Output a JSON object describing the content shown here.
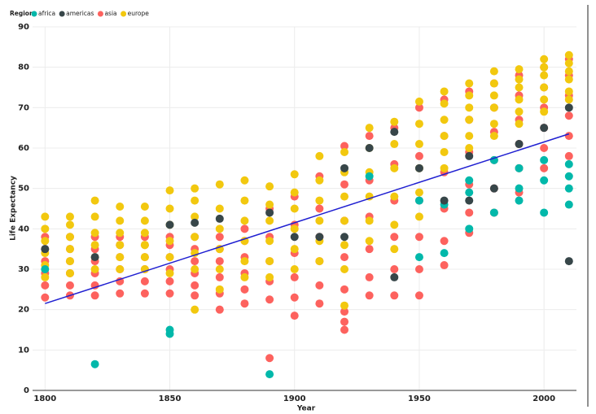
{
  "chart_data": {
    "type": "scatter",
    "legend_title": "Region",
    "x_label": "Year",
    "y_label": "Life Expectancy",
    "xlim": [
      1795,
      2013
    ],
    "ylim": [
      0,
      90
    ],
    "xticks": [
      1800,
      1850,
      1900,
      1950,
      2000
    ],
    "yticks": [
      0,
      10,
      20,
      30,
      40,
      50,
      60,
      70,
      80,
      90
    ],
    "grid": true,
    "series": [
      {
        "name": "africa",
        "color": "#01b8aa",
        "x": [
          1800,
          1820,
          1850,
          1850,
          1890,
          1930,
          1950,
          1950,
          1960,
          1960,
          1970,
          1970,
          1970,
          1980,
          1980,
          1990,
          1990,
          1990,
          2000,
          2000,
          2000,
          2010,
          2010,
          2010,
          2010
        ],
        "values": [
          30,
          6.5,
          15,
          14,
          4,
          53,
          33,
          47,
          34,
          46,
          40,
          52,
          49,
          44,
          57,
          47,
          50,
          55,
          44,
          52,
          57,
          46,
          50,
          53,
          56
        ]
      },
      {
        "name": "americas",
        "color": "#374649",
        "x": [
          1800,
          1820,
          1850,
          1860,
          1870,
          1890,
          1900,
          1910,
          1920,
          1920,
          1930,
          1940,
          1940,
          1950,
          1960,
          1970,
          1970,
          1980,
          1990,
          2000,
          2010,
          2010
        ],
        "values": [
          35,
          33,
          41,
          41.5,
          42.5,
          44,
          38,
          38,
          55,
          38,
          60,
          64,
          28,
          55,
          47,
          58,
          47,
          50,
          61,
          65,
          32,
          70
        ]
      },
      {
        "name": "asia",
        "color": "#fd625e",
        "x": [
          1800,
          1800,
          1800,
          1800,
          1800,
          1800,
          1810,
          1810,
          1810,
          1810,
          1810,
          1810,
          1820,
          1820,
          1820,
          1820,
          1820,
          1820,
          1830,
          1830,
          1830,
          1830,
          1830,
          1830,
          1840,
          1840,
          1840,
          1840,
          1840,
          1840,
          1850,
          1850,
          1850,
          1850,
          1850,
          1850,
          1860,
          1860,
          1860,
          1860,
          1860,
          1860,
          1870,
          1870,
          1870,
          1870,
          1870,
          1870,
          1880,
          1880,
          1880,
          1880,
          1880,
          1880,
          1890,
          1890,
          1890,
          1890,
          1890,
          1890,
          1900,
          1900,
          1900,
          1900,
          1900,
          1900,
          1910,
          1910,
          1910,
          1910,
          1910,
          1910,
          1920,
          1920,
          1920,
          1920,
          1920,
          1920,
          1920,
          1920,
          1930,
          1930,
          1930,
          1930,
          1930,
          1930,
          1940,
          1940,
          1940,
          1940,
          1940,
          1940,
          1950,
          1950,
          1950,
          1950,
          1950,
          1950,
          1960,
          1960,
          1960,
          1960,
          1960,
          1960,
          1970,
          1970,
          1970,
          1970,
          1970,
          1970,
          1980,
          1980,
          1980,
          1980,
          1980,
          1980,
          1990,
          1990,
          1990,
          1990,
          1990,
          1990,
          2000,
          2000,
          2000,
          2000,
          2000,
          2000,
          2010,
          2010,
          2010,
          2010,
          2010,
          2010
        ],
        "values": [
          23,
          26,
          29,
          32,
          35,
          38,
          23.5,
          26,
          29,
          32,
          35,
          38,
          23.5,
          26,
          29,
          32,
          35,
          38,
          24,
          27,
          30,
          33,
          36,
          38,
          24,
          27,
          30,
          33,
          36,
          38,
          24,
          27,
          30,
          33,
          36,
          38,
          23.5,
          26,
          29,
          32,
          35,
          38,
          20,
          24,
          28,
          32,
          35,
          38,
          21.5,
          25,
          29,
          33,
          37,
          40,
          8,
          22.5,
          27,
          32,
          38,
          45,
          18.5,
          23,
          28,
          34,
          41,
          48,
          21.5,
          26,
          32,
          38,
          45,
          53,
          15,
          17,
          19.5,
          25,
          33,
          42,
          51,
          60.5,
          23.5,
          28,
          35,
          43,
          52,
          63,
          23.5,
          30,
          38,
          47,
          56,
          65,
          23.5,
          30,
          38,
          47,
          58,
          70,
          31,
          37,
          45,
          54,
          63,
          72,
          39,
          44,
          51,
          59,
          67,
          74,
          44,
          50,
          57,
          64,
          70,
          76,
          49,
          55,
          61,
          67,
          73,
          78,
          55,
          60,
          65,
          70,
          75,
          80,
          58,
          63,
          68,
          73,
          78,
          82
        ]
      },
      {
        "name": "europe",
        "color": "#f2c80f",
        "x": [
          1800,
          1800,
          1800,
          1800,
          1800,
          1800,
          1810,
          1810,
          1810,
          1810,
          1810,
          1810,
          1820,
          1820,
          1820,
          1820,
          1820,
          1820,
          1830,
          1830,
          1830,
          1830,
          1830,
          1830,
          1840,
          1840,
          1840,
          1840,
          1840,
          1840,
          1850,
          1850,
          1850,
          1850,
          1850,
          1850,
          1860,
          1860,
          1860,
          1860,
          1860,
          1860,
          1860,
          1870,
          1870,
          1870,
          1870,
          1870,
          1870,
          1880,
          1880,
          1880,
          1880,
          1880,
          1880,
          1890,
          1890,
          1890,
          1890,
          1890,
          1890,
          1900,
          1900,
          1900,
          1900,
          1900,
          1900,
          1910,
          1910,
          1910,
          1910,
          1910,
          1910,
          1920,
          1920,
          1920,
          1920,
          1920,
          1920,
          1920,
          1930,
          1930,
          1930,
          1930,
          1930,
          1930,
          1940,
          1940,
          1940,
          1940,
          1940,
          1940,
          1950,
          1950,
          1950,
          1950,
          1950,
          1950,
          1960,
          1960,
          1960,
          1960,
          1960,
          1960,
          1970,
          1970,
          1970,
          1970,
          1970,
          1970,
          1980,
          1980,
          1980,
          1980,
          1980,
          1980,
          1990,
          1990,
          1990,
          1990,
          1990,
          1990,
          2000,
          2000,
          2000,
          2000,
          2000,
          2000,
          2010,
          2010,
          2010,
          2010,
          2010,
          2010
        ],
        "values": [
          28,
          31,
          34,
          37,
          40,
          43,
          29,
          32,
          35,
          38,
          41,
          43,
          30,
          33,
          36,
          39,
          43,
          47,
          30,
          33,
          36,
          39,
          42,
          45.5,
          30,
          33,
          36,
          39,
          42,
          45.5,
          29,
          33,
          37,
          41,
          45,
          49.5,
          20,
          30,
          34,
          38,
          43,
          47,
          50,
          25,
          30,
          35,
          40,
          45,
          51,
          28,
          32,
          37,
          42,
          47,
          52,
          28,
          32,
          37,
          42,
          46,
          50.5,
          30,
          35,
          40,
          45,
          49,
          53.5,
          32,
          37,
          42,
          47,
          52,
          58,
          21,
          30,
          36,
          42,
          48,
          54,
          59,
          37,
          42,
          48,
          54,
          60,
          65,
          35,
          41,
          48,
          55,
          61,
          66.5,
          43,
          49,
          55,
          61,
          66,
          71.5,
          55,
          59,
          63,
          67,
          71,
          74,
          60,
          63,
          67,
          70,
          73,
          76,
          63,
          66,
          70,
          73,
          76,
          79,
          66,
          69,
          72,
          75,
          77,
          79.5,
          69,
          72,
          75,
          78,
          80,
          82,
          72,
          74,
          77,
          79,
          81,
          83
        ]
      }
    ],
    "draw_order": [
      2,
      3,
      0,
      1
    ],
    "trend": {
      "x": [
        1800,
        2010
      ],
      "values": [
        21.5,
        63.5
      ],
      "color": "#1f1fd1"
    }
  }
}
